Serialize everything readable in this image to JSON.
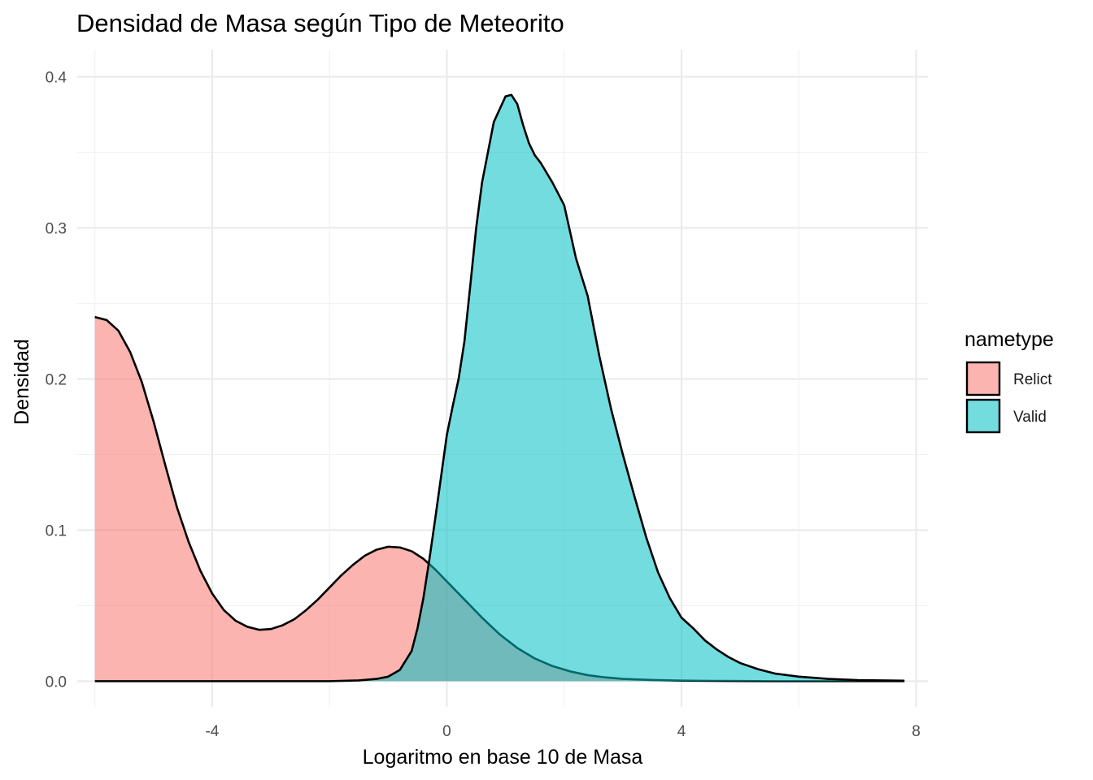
{
  "chart_data": {
    "type": "area",
    "title": "Densidad de Masa según Tipo de Meteorito",
    "xlabel": "Logaritmo en base 10 de Masa",
    "ylabel": "Densidad",
    "xlim": [
      -6.3,
      8.2
    ],
    "ylim": [
      -0.017,
      0.418
    ],
    "x_ticks": [
      -4,
      0,
      4,
      8
    ],
    "x_tick_labels": [
      "-4",
      "0",
      "4",
      "8"
    ],
    "y_ticks": [
      0.0,
      0.1,
      0.2,
      0.3,
      0.4
    ],
    "y_tick_labels": [
      "0.0",
      "0.1",
      "0.2",
      "0.3",
      "0.4"
    ],
    "grid": true,
    "legend": {
      "title": "nametype",
      "position": "right",
      "entries": [
        "Relict",
        "Valid"
      ]
    },
    "series": [
      {
        "name": "Relict",
        "color": "#F8766D",
        "x": [
          -6.0,
          -5.8,
          -5.6,
          -5.4,
          -5.2,
          -5.0,
          -4.8,
          -4.6,
          -4.4,
          -4.2,
          -4.0,
          -3.8,
          -3.6,
          -3.4,
          -3.2,
          -3.0,
          -2.8,
          -2.6,
          -2.4,
          -2.2,
          -2.0,
          -1.8,
          -1.6,
          -1.4,
          -1.2,
          -1.0,
          -0.8,
          -0.6,
          -0.4,
          -0.2,
          0.0,
          0.3,
          0.6,
          0.9,
          1.2,
          1.5,
          1.8,
          2.1,
          2.4,
          2.7,
          3.0,
          3.5,
          4.0,
          4.5,
          5.0,
          5.5,
          6.0,
          6.5,
          7.0,
          7.5,
          7.8
        ],
        "values": [
          0.241,
          0.239,
          0.232,
          0.218,
          0.198,
          0.172,
          0.143,
          0.115,
          0.092,
          0.073,
          0.058,
          0.047,
          0.04,
          0.036,
          0.034,
          0.0345,
          0.037,
          0.041,
          0.047,
          0.054,
          0.062,
          0.07,
          0.077,
          0.083,
          0.087,
          0.089,
          0.0885,
          0.086,
          0.081,
          0.074,
          0.066,
          0.054,
          0.042,
          0.031,
          0.022,
          0.015,
          0.01,
          0.0065,
          0.004,
          0.0025,
          0.0015,
          0.0008,
          0.0004,
          0.0002,
          0.0001,
          0.0,
          0.0,
          0.0,
          0.0,
          0.0,
          0.0
        ]
      },
      {
        "name": "Valid",
        "color": "#00BFC4",
        "x": [
          -6.0,
          -4.0,
          -2.0,
          -1.5,
          -1.2,
          -1.0,
          -0.8,
          -0.6,
          -0.5,
          -0.4,
          -0.3,
          -0.2,
          -0.1,
          0.0,
          0.1,
          0.2,
          0.3,
          0.4,
          0.5,
          0.6,
          0.8,
          1.0,
          1.1,
          1.2,
          1.3,
          1.4,
          1.5,
          1.6,
          1.8,
          2.0,
          2.2,
          2.4,
          2.6,
          2.8,
          3.0,
          3.2,
          3.4,
          3.6,
          3.8,
          4.0,
          4.2,
          4.4,
          4.6,
          4.8,
          5.0,
          5.3,
          5.6,
          6.0,
          6.5,
          7.0,
          7.4,
          7.8
        ],
        "values": [
          0.0,
          0.0,
          0.0,
          0.0005,
          0.0015,
          0.003,
          0.0075,
          0.02,
          0.035,
          0.055,
          0.08,
          0.107,
          0.135,
          0.163,
          0.182,
          0.2,
          0.225,
          0.262,
          0.3,
          0.33,
          0.37,
          0.387,
          0.388,
          0.382,
          0.368,
          0.356,
          0.348,
          0.343,
          0.33,
          0.315,
          0.28,
          0.255,
          0.215,
          0.18,
          0.15,
          0.122,
          0.095,
          0.072,
          0.055,
          0.042,
          0.035,
          0.027,
          0.021,
          0.016,
          0.012,
          0.008,
          0.005,
          0.003,
          0.0015,
          0.0007,
          0.0005,
          0.0003
        ]
      }
    ]
  }
}
